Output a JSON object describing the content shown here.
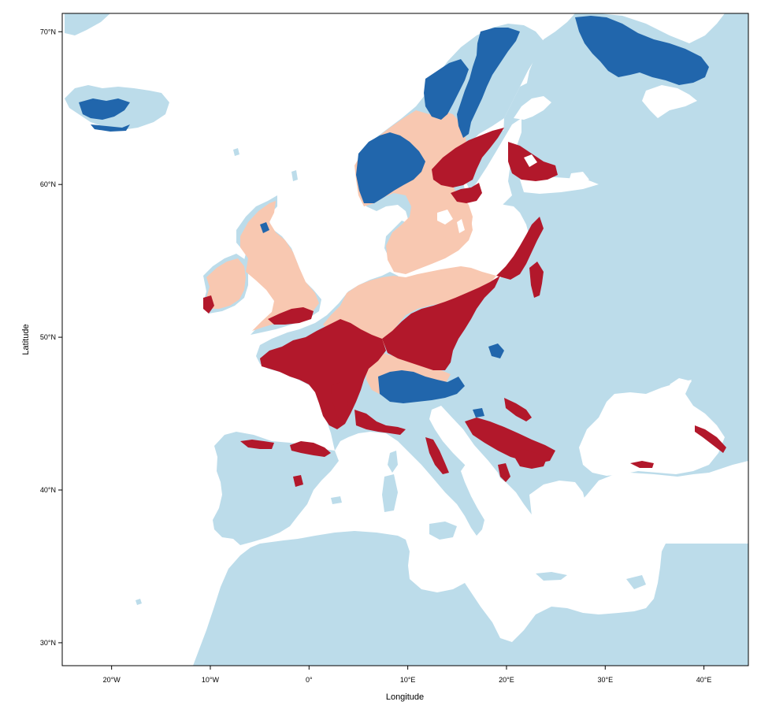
{
  "map": {
    "xlabel": "Longitude",
    "ylabel": "Latitude",
    "xlim": [
      -25,
      44.5
    ],
    "ylim": [
      28.5,
      71.2
    ],
    "x_ticks": [
      {
        "value": -20,
        "label": "20°W"
      },
      {
        "value": -10,
        "label": "10°W"
      },
      {
        "value": 0,
        "label": "0°"
      },
      {
        "value": 10,
        "label": "10°E"
      },
      {
        "value": 20,
        "label": "20°E"
      },
      {
        "value": 30,
        "label": "30°E"
      },
      {
        "value": 40,
        "label": "40°E"
      }
    ],
    "y_ticks": [
      {
        "value": 30,
        "label": "30°N"
      },
      {
        "value": 40,
        "label": "40°N"
      },
      {
        "value": 50,
        "label": "50°N"
      },
      {
        "value": 60,
        "label": "60°N"
      },
      {
        "value": 70,
        "label": "70°N"
      }
    ],
    "grid": false,
    "legend": "none",
    "colors": {
      "sea": "#ffffff",
      "land": "#bcdcea",
      "light_red": "#f8c8b1",
      "dark_red": "#b2182b",
      "dark_blue": "#2166ac"
    },
    "classes": [
      "land",
      "light_red",
      "dark_red",
      "dark_blue"
    ]
  }
}
